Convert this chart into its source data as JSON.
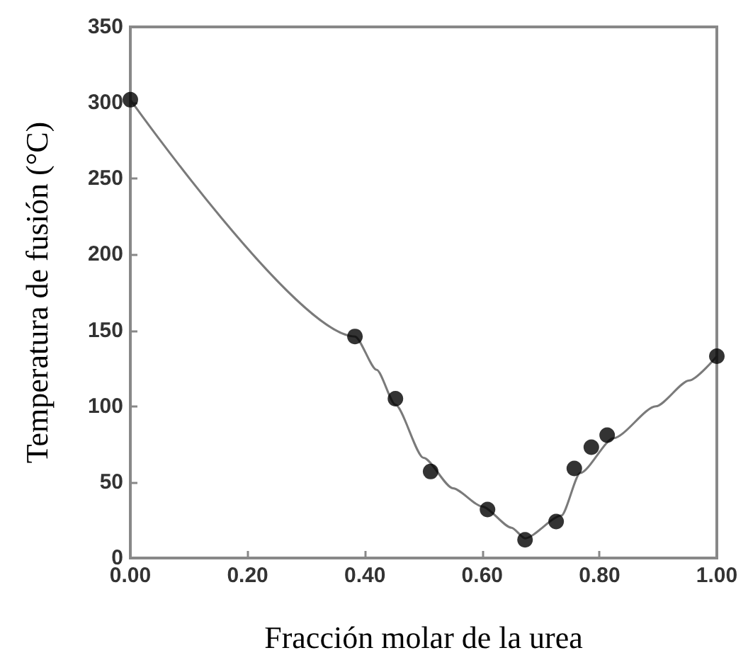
{
  "chart_data": {
    "type": "scatter",
    "xlabel": "Fracción molar de la urea",
    "ylabel": "Temperatura de fusión (°C)",
    "xlim": [
      0,
      1
    ],
    "ylim": [
      0,
      350
    ],
    "xticks": [
      {
        "value": 0,
        "label": "0.00"
      },
      {
        "value": 0.2,
        "label": "0.20"
      },
      {
        "value": 0.4,
        "label": "0.40"
      },
      {
        "value": 0.6,
        "label": "0.60"
      },
      {
        "value": 0.8,
        "label": "0.80"
      },
      {
        "value": 1,
        "label": "1.00"
      }
    ],
    "yticks": [
      0,
      50,
      100,
      150,
      200,
      250,
      300,
      350
    ],
    "grid": false,
    "series": [
      {
        "type": "line",
        "color": "#7a7a7a",
        "marker": "none",
        "line_style": "solid",
        "x": [
          0,
          0.383,
          0.42,
          0.452,
          0.5,
          0.55,
          0.6,
          0.65,
          0.673,
          0.735,
          0.767,
          0.824,
          0.896,
          0.953,
          1.0
        ],
        "values": [
          302,
          146,
          124,
          101,
          66,
          46,
          34,
          20,
          13,
          28,
          56,
          79,
          100,
          117,
          133
        ]
      },
      {
        "color": "#000000",
        "marker": "circle",
        "x": [
          0,
          0.383,
          0.452,
          0.512,
          0.609,
          0.673,
          0.726,
          0.757,
          0.786,
          0.813,
          1.0
        ],
        "values": [
          302,
          146,
          105,
          57,
          32,
          12,
          24,
          59,
          73,
          81,
          133
        ]
      }
    ]
  }
}
